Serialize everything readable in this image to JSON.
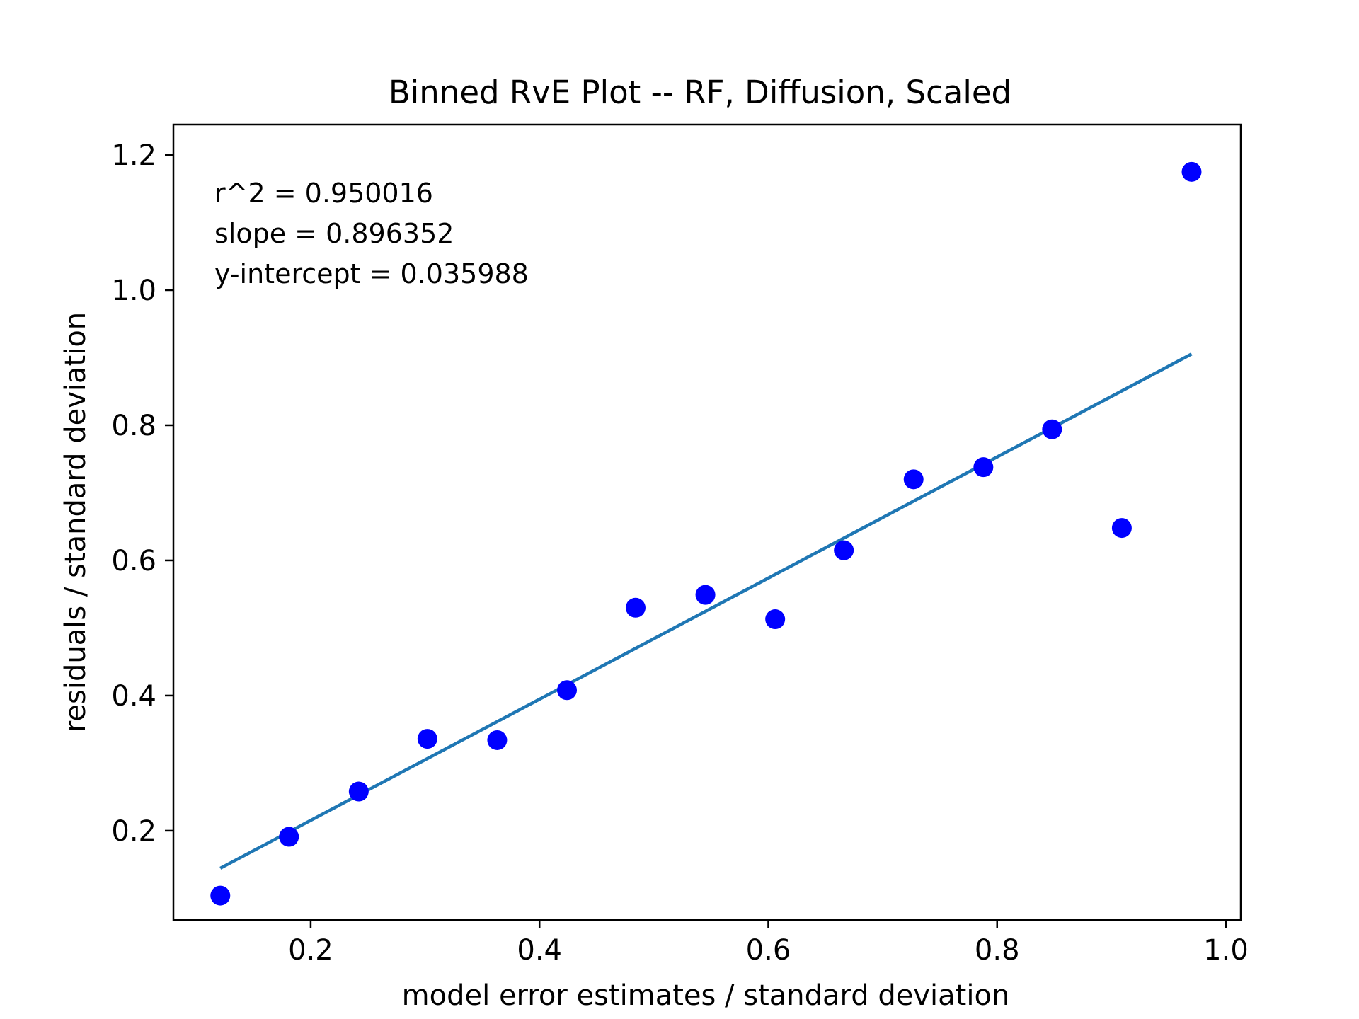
{
  "chart_data": {
    "type": "scatter",
    "title": "Binned RvE Plot -- RF, Diffusion, Scaled",
    "xlabel": "model error estimates / standard deviation",
    "ylabel": "residuals / standard deviation",
    "xlim": [
      0.08,
      1.013
    ],
    "ylim": [
      0.068,
      1.245
    ],
    "xticks": [
      0.2,
      0.4,
      0.6,
      0.8,
      1.0
    ],
    "xtick_labels": [
      "0.2",
      "0.4",
      "0.6",
      "0.8",
      "1.0"
    ],
    "yticks": [
      0.2,
      0.4,
      0.6,
      0.8,
      1.0,
      1.2
    ],
    "ytick_labels": [
      "0.2",
      "0.4",
      "0.6",
      "0.8",
      "1.0",
      "1.2"
    ],
    "grid": false,
    "series": [
      {
        "type": "scatter",
        "color": "#0000ff",
        "x": [
          0.121,
          0.181,
          0.242,
          0.302,
          0.363,
          0.424,
          0.484,
          0.545,
          0.606,
          0.666,
          0.727,
          0.788,
          0.848,
          0.909,
          0.97
        ],
        "y": [
          0.104,
          0.191,
          0.258,
          0.336,
          0.334,
          0.408,
          0.53,
          0.549,
          0.513,
          0.615,
          0.72,
          0.738,
          0.794,
          0.648,
          1.175
        ]
      },
      {
        "type": "line",
        "color": "#1f77b4",
        "x": [
          0.121,
          0.97
        ],
        "y": [
          0.1445,
          0.9055
        ]
      }
    ],
    "annotations": [
      "r^2 = 0.950016",
      "slope = 0.896352",
      "y-intercept = 0.035988"
    ]
  }
}
